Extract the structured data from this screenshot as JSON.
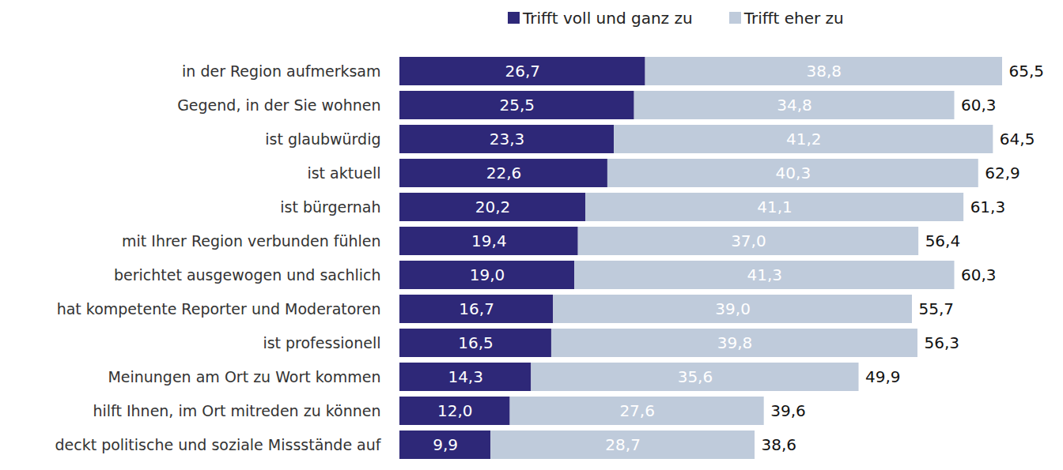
{
  "chart_data": {
    "type": "bar",
    "orientation": "horizontal",
    "stacked": true,
    "data_labels": true,
    "legend": "top",
    "tick_labels": "y",
    "xlim": [
      0,
      65.5
    ],
    "categories": [
      "in der Region aufmerksam",
      "Gegend, in der Sie wohnen",
      "ist glaubwürdig",
      "ist aktuell",
      "ist bürgernah",
      "mit Ihrer Region verbunden fühlen",
      "berichtet ausgewogen und sachlich",
      "hat kompetente Reporter und Moderatoren",
      "ist professionell",
      "Meinungen am Ort zu Wort kommen",
      "hilft Ihnen, im Ort mitreden zu können",
      "deckt politische und soziale Missstände auf"
    ],
    "series": [
      {
        "name": "Trifft voll und ganz zu",
        "color": "#2e2878",
        "values": [
          26.7,
          25.5,
          23.3,
          22.6,
          20.2,
          19.4,
          19.0,
          16.7,
          16.5,
          14.3,
          12.0,
          9.9
        ],
        "value_labels": [
          "26,7",
          "25,5",
          "23,3",
          "22,6",
          "20,2",
          "19,4",
          "19,0",
          "16,7",
          "16,5",
          "14,3",
          "12,0",
          "9,9"
        ]
      },
      {
        "name": "Trifft eher zu",
        "color": "#bfcbdb",
        "values": [
          38.8,
          34.8,
          41.2,
          40.3,
          41.1,
          37.0,
          41.3,
          39.0,
          39.8,
          35.6,
          27.6,
          28.7
        ],
        "value_labels": [
          "38,8",
          "34,8",
          "41,2",
          "40,3",
          "41,1",
          "37,0",
          "41,3",
          "39,0",
          "39,8",
          "35,6",
          "27,6",
          "28,7"
        ]
      }
    ],
    "totals": [
      65.5,
      60.3,
      64.5,
      62.9,
      61.3,
      56.4,
      60.3,
      55.7,
      56.3,
      49.9,
      39.6,
      38.6
    ],
    "total_labels": [
      "65,5",
      "60,3",
      "64,5",
      "62,9",
      "61,3",
      "56,4",
      "60,3",
      "55,7",
      "56,3",
      "49,9",
      "39,6",
      "38,6"
    ]
  }
}
